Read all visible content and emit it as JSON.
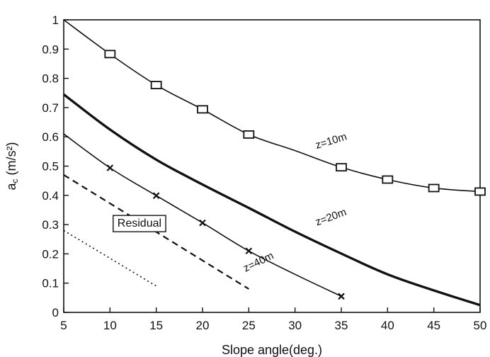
{
  "chart_data": {
    "type": "line",
    "xlabel": "Slope angle(deg.)",
    "ylabel": "a",
    "ylabel_sub": "c",
    "ylabel_unit": " (m/s²)",
    "xlim": [
      5,
      50
    ],
    "ylim": [
      0,
      1
    ],
    "xticks": [
      5,
      10,
      15,
      20,
      25,
      30,
      35,
      40,
      45,
      50
    ],
    "yticks": [
      0,
      0.1,
      0.2,
      0.3,
      0.4,
      0.5,
      0.6,
      0.7,
      0.8,
      0.9,
      1
    ],
    "ytick_labels": [
      "0",
      "0.1",
      "0.2",
      "0.3",
      "0.4",
      "0.5",
      "0.6",
      "0.7",
      "0.8",
      "0.9",
      "1"
    ],
    "grid": false,
    "series": [
      {
        "name": "z=10m",
        "line": "solid",
        "weight": "thin",
        "marker": "square",
        "x": [
          5,
          10,
          15,
          20,
          25,
          30,
          35,
          40,
          45,
          50
        ],
        "y": [
          1.0,
          0.883,
          0.777,
          0.694,
          0.608,
          0.553,
          0.496,
          0.454,
          0.425,
          0.413
        ],
        "marker_x": [
          10,
          15,
          20,
          25,
          35,
          40,
          45,
          50
        ],
        "marker_y": [
          0.883,
          0.777,
          0.694,
          0.608,
          0.496,
          0.454,
          0.425,
          0.413
        ]
      },
      {
        "name": "z=20m",
        "line": "solid",
        "weight": "thick",
        "marker": "none",
        "x": [
          5,
          10,
          15,
          20,
          25,
          30,
          35,
          40,
          45,
          50
        ],
        "y": [
          0.745,
          0.625,
          0.522,
          0.437,
          0.357,
          0.276,
          0.201,
          0.13,
          0.075,
          0.025
        ]
      },
      {
        "name": "z=40m",
        "line": "solid",
        "weight": "thin",
        "marker": "x",
        "x": [
          5,
          10,
          15,
          20,
          25,
          30,
          35
        ],
        "y": [
          0.61,
          0.494,
          0.399,
          0.306,
          0.21,
          0.13,
          0.055
        ],
        "marker_x": [
          10,
          15,
          20,
          25,
          35
        ],
        "marker_y": [
          0.494,
          0.399,
          0.306,
          0.21,
          0.055
        ]
      },
      {
        "name": "Residual (dashed)",
        "line": "dashed",
        "weight": "medium",
        "marker": "none",
        "x": [
          5,
          25
        ],
        "y": [
          0.47,
          0.08
        ]
      },
      {
        "name": "Residual (dotted)",
        "line": "dotted",
        "weight": "thin",
        "marker": "none",
        "x": [
          5,
          15
        ],
        "y": [
          0.28,
          0.09
        ]
      }
    ],
    "annotations": [
      {
        "text": "z=10m",
        "x": 34,
        "y": 0.575,
        "angle": -17
      },
      {
        "text": "z=20m",
        "x": 34,
        "y": 0.315,
        "angle": -20
      },
      {
        "text": "z=40m",
        "x": 26.2,
        "y": 0.162,
        "angle": -26
      },
      {
        "text": "Residual",
        "x": 10.8,
        "y": 0.295,
        "boxed": true
      }
    ]
  }
}
